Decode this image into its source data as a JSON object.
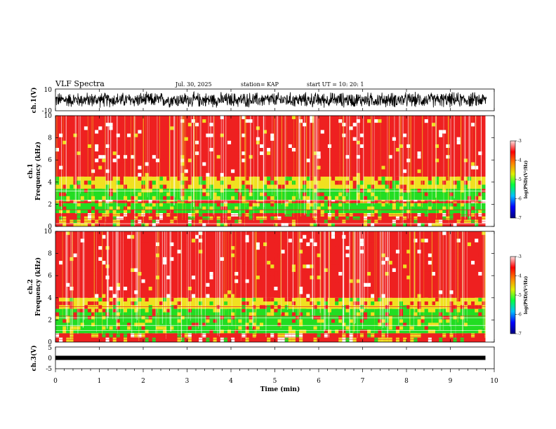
{
  "header": {
    "title": "VLF Spectra",
    "date": "Jul. 30, 2025",
    "station": "station= KAP",
    "start": "start UT =   10: 20: 1"
  },
  "colors": {
    "spectrum_low": "#22dd22",
    "spectrum_mid": "#f0e020",
    "spectrum_high": "#ee2020",
    "spectrum_peak": "#ffffff",
    "colorbar": [
      "#000080",
      "#0000ff",
      "#00c0ff",
      "#00ff40",
      "#e0f000",
      "#ff8000",
      "#ff0000",
      "#ffe0e0"
    ]
  },
  "chart_data": [
    {
      "type": "line",
      "name": "ch.1 waveform",
      "ylabel": "ch.1(V)",
      "ylim": [
        -10,
        10
      ],
      "ytick_labels": [
        "10",
        "-10"
      ],
      "xlim": [
        0,
        10
      ],
      "amplitude_range": [
        -8,
        8
      ]
    },
    {
      "type": "heatmap",
      "name": "ch.1 spectrogram",
      "ylabel_line1": "ch.1",
      "ylabel_line2": "Frequency (kHz)",
      "ylim": [
        0,
        10
      ],
      "ytick_labels": [
        "0",
        "2",
        "4",
        "6",
        "8",
        "10"
      ],
      "xlim": [
        0,
        9.8
      ],
      "colorbar": {
        "range": [
          -7,
          -3
        ],
        "tick_labels": [
          "-3",
          "-4",
          "-5",
          "-6",
          "-7"
        ],
        "label": "log(PSD)(V²/Hz)"
      },
      "bands": [
        {
          "from": 0.0,
          "to": 1.2,
          "level": "mixed"
        },
        {
          "from": 1.2,
          "to": 2.1,
          "level": "low"
        },
        {
          "from": 2.1,
          "to": 2.4,
          "level": "mixed"
        },
        {
          "from": 2.4,
          "to": 3.4,
          "level": "low"
        },
        {
          "from": 3.4,
          "to": 4.5,
          "level": "mid"
        },
        {
          "from": 4.5,
          "to": 10.0,
          "level": "high"
        }
      ]
    },
    {
      "type": "heatmap",
      "name": "ch.2 spectrogram",
      "ylabel_line1": "ch.2",
      "ylabel_line2": "Frequency (kHz)",
      "ylim": [
        0,
        10
      ],
      "ytick_labels": [
        "0",
        "2",
        "4",
        "6",
        "8",
        "10"
      ],
      "xlim": [
        0,
        9.8
      ],
      "colorbar": {
        "range": [
          -7,
          -3
        ],
        "tick_labels": [
          "-3",
          "-4",
          "-5",
          "-6",
          "-7"
        ],
        "label": "log(PSD)(V²/Hz)"
      },
      "bands": [
        {
          "from": 0.0,
          "to": 0.8,
          "level": "mixed"
        },
        {
          "from": 0.8,
          "to": 3.0,
          "level": "low"
        },
        {
          "from": 3.0,
          "to": 4.0,
          "level": "mid"
        },
        {
          "from": 4.0,
          "to": 10.0,
          "level": "high"
        }
      ]
    },
    {
      "type": "line",
      "name": "ch.3 waveform",
      "ylabel": "ch.3(V)",
      "ylim": [
        -5,
        5
      ],
      "ytick_labels": [
        "5",
        "0",
        "-5"
      ],
      "xlim": [
        0,
        10
      ],
      "level": 0,
      "xlabel": "Time (min)",
      "xtick_labels": [
        "0",
        "1",
        "2",
        "3",
        "4",
        "5",
        "6",
        "7",
        "8",
        "9",
        "10"
      ]
    }
  ]
}
